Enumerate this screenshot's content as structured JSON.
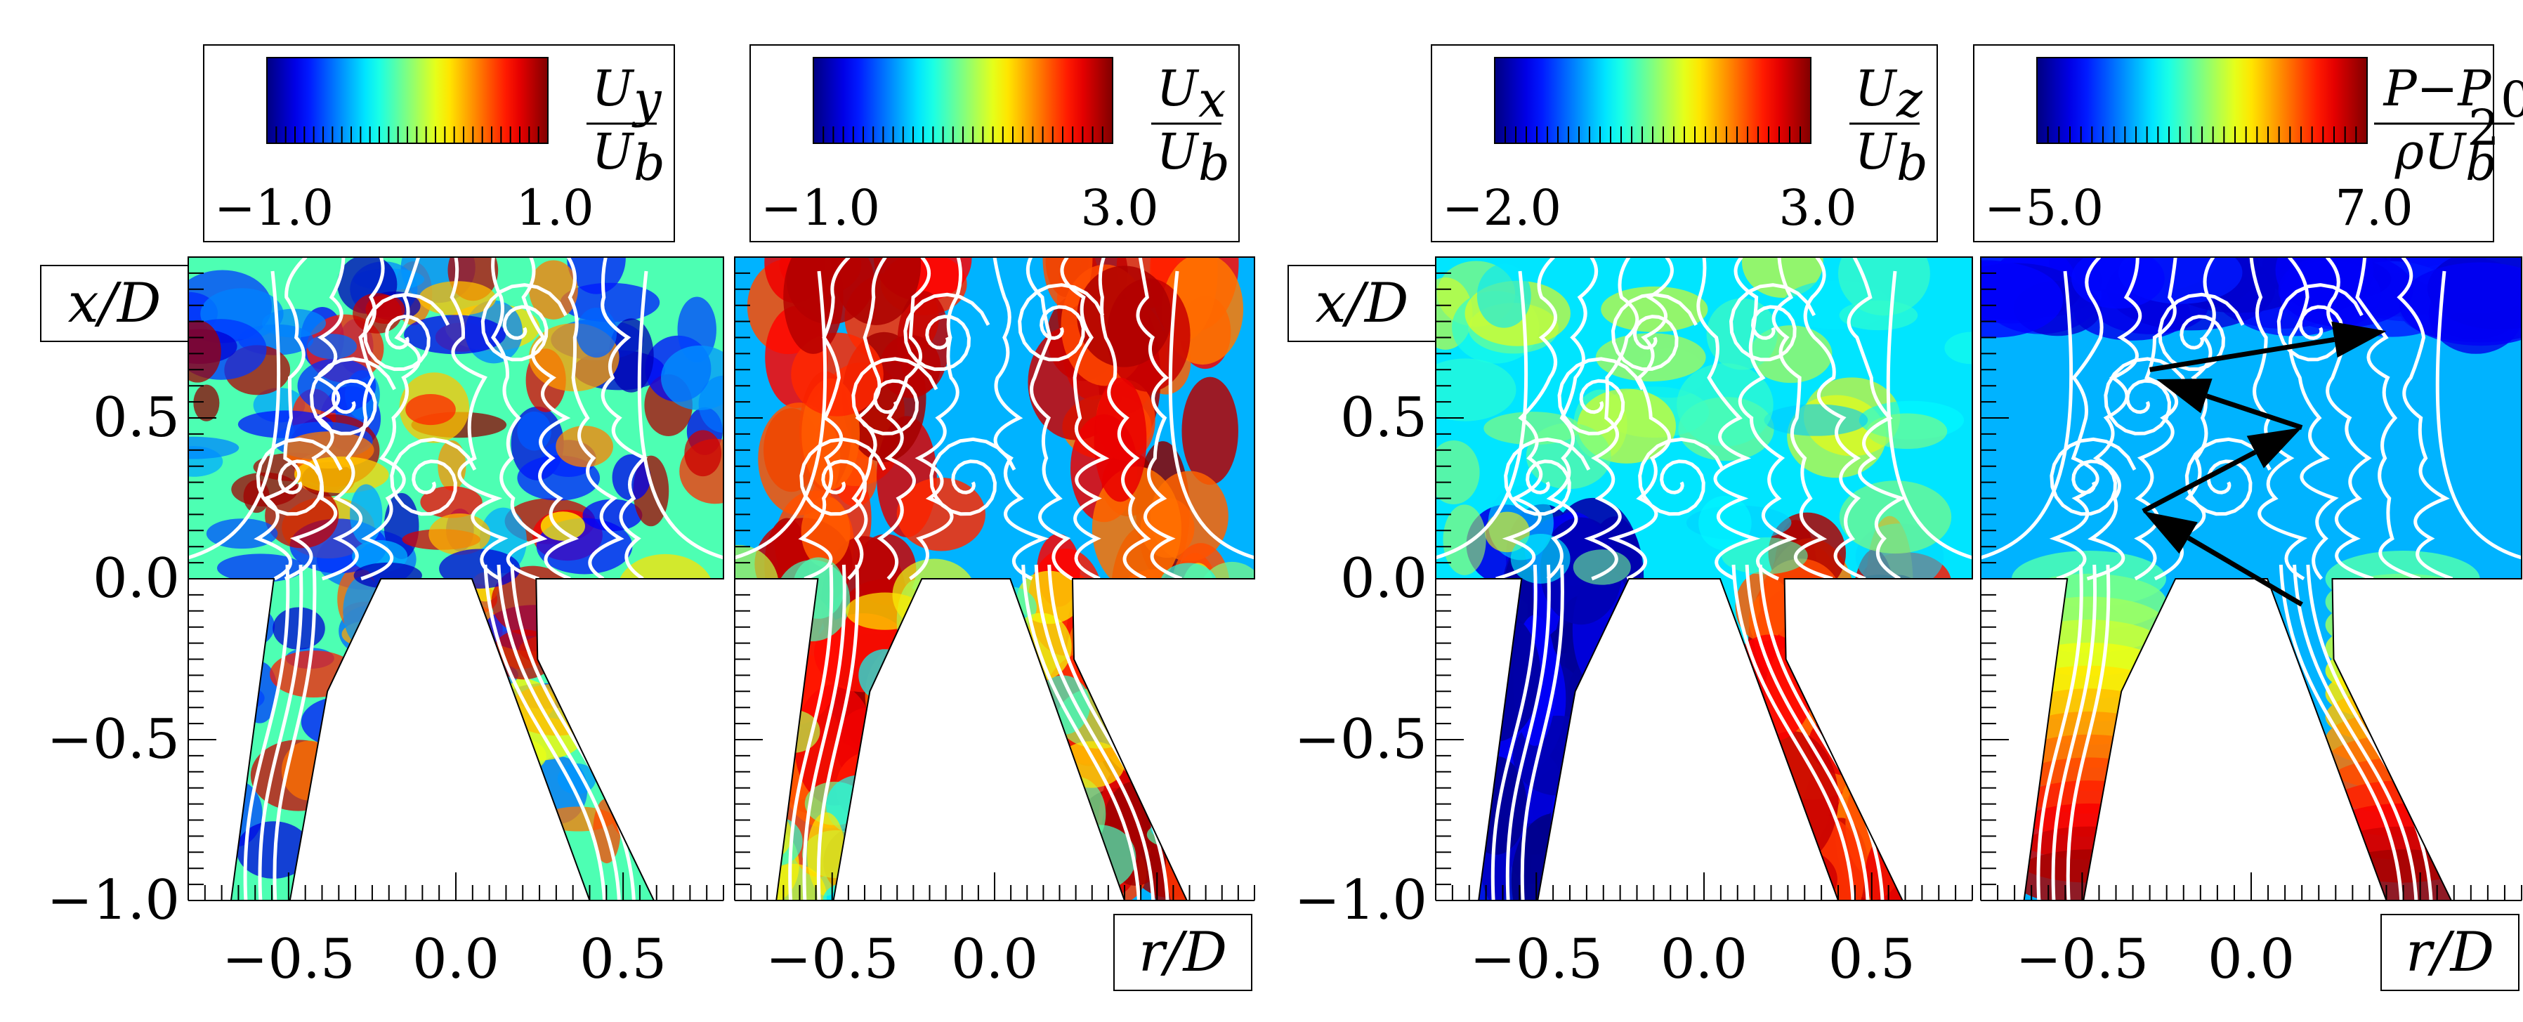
{
  "chart_data": [
    {
      "type": "heatmap",
      "title": "",
      "colorbar": {
        "var": "U",
        "sub": "y",
        "den": "U",
        "den_sub": "b",
        "min": -1.0,
        "max": 1.0,
        "min_label": "−1.0",
        "max_label": "1.0",
        "colormap": "jet"
      },
      "xlabel": "",
      "ylabel": "x/D",
      "xticks": [
        -0.5,
        0.0,
        0.5
      ],
      "xtick_labels": [
        "−0.5",
        "0.0",
        "0.5"
      ],
      "yticks": [
        -1.0,
        -0.5,
        0.0,
        0.5
      ],
      "ytick_labels": [
        "−1.0",
        "−0.5",
        "0.0",
        "0.5"
      ],
      "xlim": [
        -0.8,
        0.8
      ],
      "ylim": [
        -1.0,
        1.0
      ],
      "style": "mottled"
    },
    {
      "type": "heatmap",
      "title": "",
      "colorbar": {
        "var": "U",
        "sub": "x",
        "den": "U",
        "den_sub": "b",
        "min": -1.0,
        "max": 3.0,
        "min_label": "−1.0",
        "max_label": "3.0",
        "colormap": "jet"
      },
      "xlabel": "r/D",
      "ylabel": "",
      "xticks": [
        -0.5,
        0.0
      ],
      "xtick_labels": [
        "−0.5",
        "0.0"
      ],
      "yticks": [],
      "ytick_labels": [],
      "xlim": [
        -0.8,
        0.8
      ],
      "ylim": [
        -1.0,
        1.0
      ],
      "style": "axial-jets"
    },
    {
      "type": "heatmap",
      "title": "",
      "colorbar": {
        "var": "U",
        "sub": "z",
        "den": "U",
        "den_sub": "b",
        "min": -2.0,
        "max": 3.0,
        "min_label": "−2.0",
        "max_label": "3.0",
        "colormap": "jet"
      },
      "xlabel": "",
      "ylabel": "x/D",
      "xticks": [
        -0.5,
        0.0,
        0.5
      ],
      "xtick_labels": [
        "−0.5",
        "0.0",
        "0.5"
      ],
      "yticks": [
        -1.0,
        -0.5,
        0.0,
        0.5
      ],
      "ytick_labels": [
        "−1.0",
        "−0.5",
        "0.0",
        "0.5"
      ],
      "xlim": [
        -0.8,
        0.8
      ],
      "ylim": [
        -1.0,
        1.0
      ],
      "style": "swirl"
    },
    {
      "type": "heatmap",
      "title": "",
      "colorbar": {
        "var": "P",
        "frac_num": "P−P",
        "num_sub": "0",
        "frac_den": "ρU",
        "den_sub": "b",
        "den_sup": "2",
        "min": -5.0,
        "max": 7.0,
        "min_label": "−5.0",
        "max_label": "7.0",
        "colormap": "jet"
      },
      "xlabel": "r/D",
      "ylabel": "",
      "xticks": [
        -0.5,
        0.0
      ],
      "xtick_labels": [
        "−0.5",
        "0.0"
      ],
      "yticks": [],
      "ytick_labels": [],
      "xlim": [
        -0.8,
        0.8
      ],
      "ylim": [
        -1.0,
        1.0
      ],
      "style": "pressure",
      "arrows": [
        {
          "from": [
            -0.3,
            0.65
          ],
          "to": [
            0.4,
            0.77
          ]
        },
        {
          "from": [
            0.15,
            0.47
          ],
          "to": [
            -0.28,
            0.62
          ]
        },
        {
          "from": [
            -0.32,
            0.21
          ],
          "to": [
            0.15,
            0.47
          ]
        },
        {
          "from": [
            0.15,
            -0.08
          ],
          "to": [
            -0.32,
            0.21
          ]
        }
      ]
    }
  ]
}
